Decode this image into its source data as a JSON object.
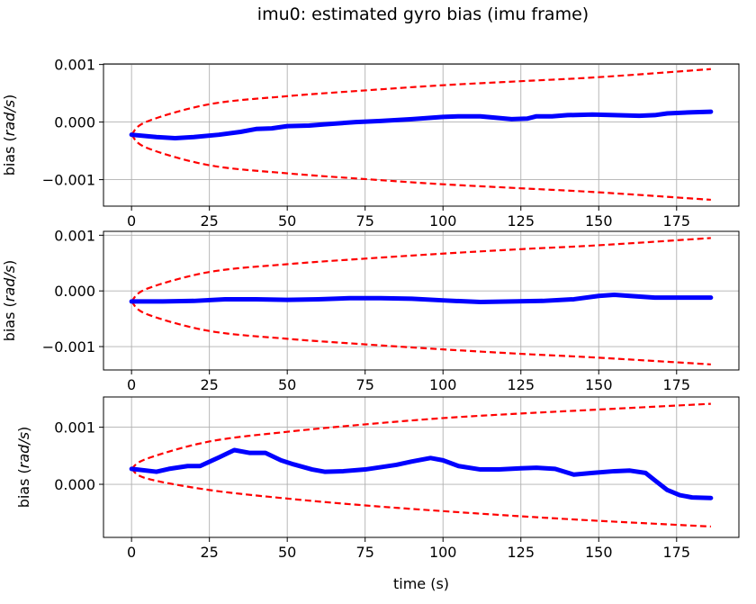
{
  "figure": {
    "title": "imu0: estimated gyro bias (imu frame)",
    "xlabel": "time (s)"
  },
  "chart_data": [
    {
      "type": "line",
      "ylabel_prefix": "bias (",
      "ylabel_unit": "rad/s",
      "ylabel_suffix": ")",
      "xlim": [
        -9,
        195
      ],
      "ylim": [
        -0.00146,
        0.00101
      ],
      "xticks": [
        0,
        25,
        50,
        75,
        100,
        125,
        150,
        175
      ],
      "xtick_labels": [
        "0",
        "25",
        "50",
        "75",
        "100",
        "125",
        "150",
        "175"
      ],
      "yticks": [
        -0.001,
        0.0,
        0.001
      ],
      "ytick_labels": [
        "−0.001",
        "0.000",
        "0.001"
      ],
      "grid": true,
      "colors": {
        "estimate": "#0000ff",
        "bound": "#ff0000"
      },
      "bounds": {
        "upper": [
          [
            0,
            -0.00022
          ],
          [
            5,
            1e-05
          ],
          [
            25,
            0.00031
          ],
          [
            50,
            0.00045
          ],
          [
            75,
            0.00055
          ],
          [
            100,
            0.00064
          ],
          [
            125,
            0.00071
          ],
          [
            150,
            0.00078
          ],
          [
            186,
            0.00092
          ]
        ],
        "lower": [
          [
            0,
            -0.00022
          ],
          [
            5,
            -0.00045
          ],
          [
            25,
            -0.00075
          ],
          [
            50,
            -0.00089
          ],
          [
            75,
            -0.00099
          ],
          [
            100,
            -0.00108
          ],
          [
            125,
            -0.00115
          ],
          [
            150,
            -0.00122
          ],
          [
            186,
            -0.00135
          ]
        ]
      },
      "series": [
        {
          "x": [
            0,
            8,
            14,
            20,
            28,
            35,
            40,
            45,
            50,
            57,
            62,
            72,
            80,
            90,
            100,
            105,
            112,
            118,
            122,
            127,
            130,
            135,
            140,
            148,
            155,
            163,
            168,
            172,
            180,
            186
          ],
          "y": [
            -0.00022,
            -0.00026,
            -0.00028,
            -0.00026,
            -0.00022,
            -0.00017,
            -0.00012,
            -0.00011,
            -7e-05,
            -6e-05,
            -4e-05,
            0.0,
            2e-05,
            5e-05,
            9e-05,
            0.0001,
            0.0001,
            7e-05,
            5e-05,
            6e-05,
            0.0001,
            0.0001,
            0.00012,
            0.00013,
            0.00012,
            0.00011,
            0.00012,
            0.00015,
            0.00017,
            0.00018
          ]
        }
      ]
    },
    {
      "type": "line",
      "ylabel_prefix": "bias (",
      "ylabel_unit": "rad/s",
      "ylabel_suffix": ")",
      "xlim": [
        -9,
        195
      ],
      "ylim": [
        -0.00142,
        0.00107
      ],
      "xticks": [
        0,
        25,
        50,
        75,
        100,
        125,
        150,
        175
      ],
      "xtick_labels": [
        "0",
        "25",
        "50",
        "75",
        "100",
        "125",
        "150",
        "175"
      ],
      "yticks": [
        -0.001,
        0.0,
        0.001
      ],
      "ytick_labels": [
        "−0.001",
        "0.000",
        "0.001"
      ],
      "grid": true,
      "colors": {
        "estimate": "#0000ff",
        "bound": "#ff0000"
      },
      "bounds": {
        "upper": [
          [
            0,
            -0.00019
          ],
          [
            5,
            4e-05
          ],
          [
            25,
            0.00034
          ],
          [
            50,
            0.00048
          ],
          [
            75,
            0.00058
          ],
          [
            100,
            0.00067
          ],
          [
            125,
            0.00075
          ],
          [
            150,
            0.00082
          ],
          [
            186,
            0.00095
          ]
        ],
        "lower": [
          [
            0,
            -0.00019
          ],
          [
            5,
            -0.00042
          ],
          [
            25,
            -0.00072
          ],
          [
            50,
            -0.00086
          ],
          [
            75,
            -0.00096
          ],
          [
            100,
            -0.00105
          ],
          [
            125,
            -0.00113
          ],
          [
            150,
            -0.0012
          ],
          [
            186,
            -0.00132
          ]
        ]
      },
      "series": [
        {
          "x": [
            0,
            10,
            20,
            30,
            40,
            50,
            60,
            70,
            80,
            90,
            100,
            112,
            122,
            132,
            142,
            150,
            155,
            160,
            168,
            175,
            186
          ],
          "y": [
            -0.00019,
            -0.00019,
            -0.00018,
            -0.00015,
            -0.00015,
            -0.00016,
            -0.00015,
            -0.00013,
            -0.00013,
            -0.00014,
            -0.00017,
            -0.0002,
            -0.00019,
            -0.00018,
            -0.00015,
            -9e-05,
            -7e-05,
            -9e-05,
            -0.00012,
            -0.00012,
            -0.00012
          ]
        }
      ]
    },
    {
      "type": "line",
      "ylabel_prefix": "bias (",
      "ylabel_unit": "rad/s",
      "ylabel_suffix": ")",
      "xlim": [
        -9,
        195
      ],
      "ylim": [
        -0.00093,
        0.00153
      ],
      "xticks": [
        0,
        25,
        50,
        75,
        100,
        125,
        150,
        175
      ],
      "xtick_labels": [
        "0",
        "25",
        "50",
        "75",
        "100",
        "125",
        "150",
        "175"
      ],
      "yticks": [
        0.0,
        0.001
      ],
      "ytick_labels": [
        "0.000",
        "0.001"
      ],
      "grid": true,
      "colors": {
        "estimate": "#0000ff",
        "bound": "#ff0000"
      },
      "bounds": {
        "upper": [
          [
            0,
            0.00027
          ],
          [
            5,
            0.00045
          ],
          [
            25,
            0.00075
          ],
          [
            50,
            0.00092
          ],
          [
            75,
            0.00105
          ],
          [
            100,
            0.00116
          ],
          [
            125,
            0.00124
          ],
          [
            150,
            0.00131
          ],
          [
            186,
            0.00141
          ]
        ],
        "lower": [
          [
            0,
            0.00027
          ],
          [
            5,
            0.0001
          ],
          [
            25,
            -0.0001
          ],
          [
            50,
            -0.00025
          ],
          [
            75,
            -0.00037
          ],
          [
            100,
            -0.00047
          ],
          [
            125,
            -0.00056
          ],
          [
            150,
            -0.00064
          ],
          [
            186,
            -0.00074
          ]
        ]
      },
      "series": [
        {
          "x": [
            0,
            8,
            12,
            18,
            22,
            28,
            33,
            38,
            43,
            48,
            52,
            58,
            62,
            68,
            75,
            85,
            90,
            96,
            100,
            105,
            112,
            118,
            125,
            130,
            136,
            142,
            148,
            155,
            160,
            165,
            168,
            172,
            176,
            180,
            186
          ],
          "y": [
            0.00027,
            0.00022,
            0.00027,
            0.00032,
            0.00032,
            0.00047,
            0.0006,
            0.00055,
            0.00055,
            0.00042,
            0.00035,
            0.00026,
            0.00022,
            0.00023,
            0.00026,
            0.00034,
            0.0004,
            0.00046,
            0.00042,
            0.00032,
            0.00026,
            0.00026,
            0.00028,
            0.00029,
            0.00027,
            0.00017,
            0.0002,
            0.00023,
            0.00024,
            0.0002,
            7e-05,
            -0.0001,
            -0.00019,
            -0.00023,
            -0.00024
          ]
        }
      ]
    }
  ]
}
